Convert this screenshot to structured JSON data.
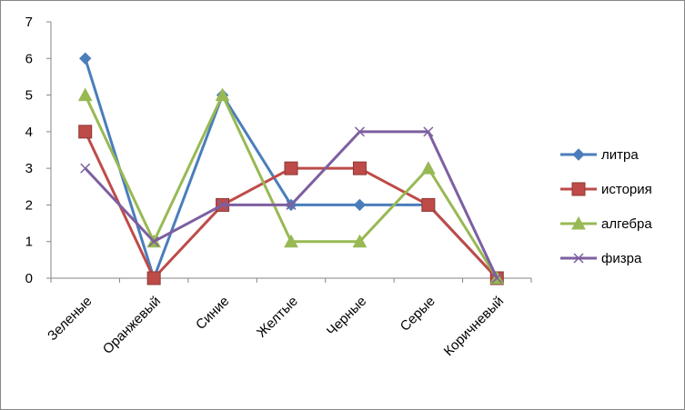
{
  "chart_data": {
    "type": "line",
    "title": "",
    "xlabel": "",
    "ylabel": "",
    "categories": [
      "Зеленые",
      "Оранжевый",
      "Синие",
      "Желтые",
      "Черные",
      "Серые",
      "Коричневый"
    ],
    "ylim": [
      0,
      7
    ],
    "yticks": [
      0,
      1,
      2,
      3,
      4,
      5,
      6,
      7
    ],
    "grid": false,
    "legend_position": "right",
    "series": [
      {
        "name": "литра",
        "values": [
          6,
          0,
          5,
          2,
          2,
          2,
          0
        ],
        "color": "#4A7EBB",
        "marker": "diamond"
      },
      {
        "name": "история",
        "values": [
          4,
          0,
          2,
          3,
          3,
          2,
          0
        ],
        "color": "#BE4B48",
        "marker": "square"
      },
      {
        "name": "алгебра",
        "values": [
          5,
          1,
          5,
          1,
          1,
          3,
          0
        ],
        "color": "#98B954",
        "marker": "triangle"
      },
      {
        "name": "физра",
        "values": [
          3,
          1,
          2,
          2,
          4,
          4,
          0
        ],
        "color": "#7D5FA0",
        "marker": "x"
      }
    ]
  }
}
